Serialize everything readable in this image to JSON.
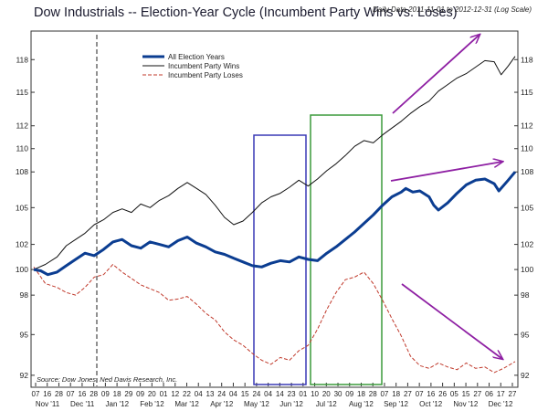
{
  "header": {
    "title": "Dow Industrials -- Election-Year Cycle (Incumbent Party Wins vs. Loses)",
    "subtitle": "Daily Data 2011-11-01 to 2012-12-31 (Log Scale)"
  },
  "source": "Source: Dow Jones, Ned Davis Research, Inc.",
  "colors": {
    "all": "#0b3d91",
    "wins": "#111111",
    "loses": "#c0392b",
    "arrow": "#8e1fa3",
    "box_blue": "#3a3ab5",
    "box_green": "#3a9a3a"
  },
  "chart_data": {
    "type": "line",
    "yscale": "log",
    "ylim": [
      91.2,
      120.6
    ],
    "yticks": [
      92,
      95,
      98,
      100,
      102,
      105,
      108,
      110,
      112,
      115,
      118
    ],
    "day_ticks": [
      "07",
      "16",
      "28",
      "07",
      "16",
      "28",
      "09",
      "18",
      "29",
      "09",
      "20",
      "01",
      "12",
      "22",
      "04",
      "13",
      "24",
      "04",
      "15",
      "24",
      "04",
      "14",
      "23",
      "01",
      "10",
      "20",
      "30",
      "09",
      "18",
      "28",
      "07",
      "18",
      "27",
      "07",
      "16",
      "26",
      "05",
      "15",
      "27",
      "06",
      "17",
      "27"
    ],
    "month_labels": [
      "Nov '11",
      "Dec '11",
      "Jan '12",
      "Feb '12",
      "Mar '12",
      "Apr '12",
      "May '12",
      "Jun '12",
      "Jul '12",
      "Aug '12",
      "Sep '12",
      "Oct '12",
      "Nov '12",
      "Dec '12"
    ],
    "legend": [
      {
        "name": "All Election Years",
        "series": "all"
      },
      {
        "name": "Incumbent Party Wins",
        "series": "wins"
      },
      {
        "name": "Incumbent Party Loses",
        "series": "loses"
      }
    ],
    "series": [
      {
        "id": "all",
        "name": "All Election Years",
        "style": "thick",
        "points": [
          [
            0,
            100
          ],
          [
            3,
            99.9
          ],
          [
            6,
            99.6
          ],
          [
            10,
            99.8
          ],
          [
            14,
            100.3
          ],
          [
            18,
            100.8
          ],
          [
            22,
            101.3
          ],
          [
            26,
            101.1
          ],
          [
            30,
            101.6
          ],
          [
            34,
            102.2
          ],
          [
            38,
            102.4
          ],
          [
            42,
            101.9
          ],
          [
            46,
            101.7
          ],
          [
            50,
            102.2
          ],
          [
            54,
            102.0
          ],
          [
            58,
            101.8
          ],
          [
            62,
            102.3
          ],
          [
            66,
            102.6
          ],
          [
            70,
            102.1
          ],
          [
            74,
            101.8
          ],
          [
            78,
            101.4
          ],
          [
            82,
            101.2
          ],
          [
            86,
            100.9
          ],
          [
            90,
            100.6
          ],
          [
            94,
            100.3
          ],
          [
            98,
            100.2
          ],
          [
            102,
            100.5
          ],
          [
            106,
            100.7
          ],
          [
            110,
            100.6
          ],
          [
            114,
            101.0
          ],
          [
            118,
            100.8
          ],
          [
            122,
            100.7
          ],
          [
            126,
            101.3
          ],
          [
            130,
            101.8
          ],
          [
            134,
            102.4
          ],
          [
            138,
            103.0
          ],
          [
            142,
            103.7
          ],
          [
            146,
            104.4
          ],
          [
            150,
            105.2
          ],
          [
            154,
            105.9
          ],
          [
            158,
            106.3
          ],
          [
            160,
            106.6
          ],
          [
            163,
            106.3
          ],
          [
            166,
            106.4
          ],
          [
            170,
            105.9
          ],
          [
            172,
            105.2
          ],
          [
            174,
            104.8
          ],
          [
            178,
            105.4
          ],
          [
            182,
            106.2
          ],
          [
            186,
            106.9
          ],
          [
            190,
            107.3
          ],
          [
            194,
            107.4
          ],
          [
            198,
            107.0
          ],
          [
            200,
            106.4
          ],
          [
            204,
            107.3
          ],
          [
            207,
            108.0
          ]
        ]
      },
      {
        "id": "wins",
        "name": "Incumbent Party Wins",
        "style": "thin",
        "points": [
          [
            0,
            100
          ],
          [
            5,
            100.4
          ],
          [
            10,
            101.0
          ],
          [
            14,
            101.9
          ],
          [
            18,
            102.4
          ],
          [
            22,
            102.9
          ],
          [
            26,
            103.6
          ],
          [
            30,
            104.0
          ],
          [
            34,
            104.6
          ],
          [
            38,
            104.9
          ],
          [
            42,
            104.6
          ],
          [
            46,
            105.3
          ],
          [
            50,
            105.0
          ],
          [
            54,
            105.6
          ],
          [
            58,
            106.0
          ],
          [
            62,
            106.6
          ],
          [
            66,
            107.1
          ],
          [
            70,
            106.6
          ],
          [
            74,
            106.1
          ],
          [
            78,
            105.2
          ],
          [
            82,
            104.2
          ],
          [
            86,
            103.6
          ],
          [
            90,
            103.9
          ],
          [
            94,
            104.6
          ],
          [
            98,
            105.4
          ],
          [
            102,
            105.9
          ],
          [
            106,
            106.2
          ],
          [
            110,
            106.7
          ],
          [
            114,
            107.3
          ],
          [
            118,
            106.8
          ],
          [
            122,
            107.4
          ],
          [
            126,
            108.1
          ],
          [
            130,
            108.7
          ],
          [
            134,
            109.4
          ],
          [
            138,
            110.2
          ],
          [
            142,
            110.7
          ],
          [
            146,
            110.5
          ],
          [
            150,
            111.2
          ],
          [
            154,
            111.8
          ],
          [
            158,
            112.4
          ],
          [
            162,
            113.1
          ],
          [
            166,
            113.7
          ],
          [
            170,
            114.2
          ],
          [
            174,
            115.1
          ],
          [
            178,
            115.7
          ],
          [
            182,
            116.3
          ],
          [
            186,
            116.7
          ],
          [
            190,
            117.3
          ],
          [
            194,
            117.9
          ],
          [
            198,
            117.8
          ],
          [
            201,
            116.6
          ],
          [
            204,
            117.4
          ],
          [
            207,
            118.3
          ]
        ]
      },
      {
        "id": "loses",
        "name": "Incumbent Party Loses",
        "style": "dashed",
        "points": [
          [
            0,
            100.2
          ],
          [
            5,
            98.9
          ],
          [
            10,
            98.6
          ],
          [
            14,
            98.2
          ],
          [
            18,
            98.0
          ],
          [
            22,
            98.6
          ],
          [
            26,
            99.4
          ],
          [
            30,
            99.6
          ],
          [
            34,
            100.4
          ],
          [
            38,
            99.8
          ],
          [
            42,
            99.3
          ],
          [
            46,
            98.8
          ],
          [
            50,
            98.5
          ],
          [
            54,
            98.2
          ],
          [
            58,
            97.6
          ],
          [
            62,
            97.7
          ],
          [
            66,
            97.9
          ],
          [
            70,
            97.3
          ],
          [
            74,
            96.6
          ],
          [
            78,
            96.1
          ],
          [
            82,
            95.2
          ],
          [
            86,
            94.6
          ],
          [
            90,
            94.2
          ],
          [
            94,
            93.6
          ],
          [
            98,
            93.1
          ],
          [
            102,
            92.8
          ],
          [
            106,
            93.3
          ],
          [
            110,
            93.1
          ],
          [
            114,
            93.8
          ],
          [
            118,
            94.2
          ],
          [
            122,
            95.4
          ],
          [
            126,
            96.9
          ],
          [
            130,
            98.2
          ],
          [
            134,
            99.2
          ],
          [
            138,
            99.4
          ],
          [
            142,
            99.8
          ],
          [
            146,
            98.9
          ],
          [
            150,
            97.6
          ],
          [
            154,
            96.2
          ],
          [
            158,
            94.9
          ],
          [
            162,
            93.4
          ],
          [
            166,
            92.7
          ],
          [
            170,
            92.5
          ],
          [
            174,
            92.9
          ],
          [
            178,
            92.6
          ],
          [
            182,
            92.4
          ],
          [
            186,
            92.9
          ],
          [
            190,
            92.5
          ],
          [
            194,
            92.6
          ],
          [
            198,
            92.2
          ],
          [
            202,
            92.5
          ],
          [
            205,
            92.8
          ],
          [
            207,
            93.0
          ]
        ]
      }
    ]
  }
}
